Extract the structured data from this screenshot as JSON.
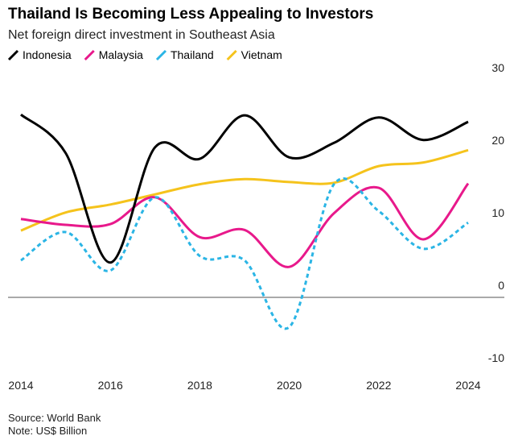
{
  "chart_data": {
    "type": "line",
    "title": "Thailand Is Becoming Less Appealing to Investors",
    "subtitle": "Net foreign direct investment in Southeast Asia",
    "source": "Source: World Bank",
    "note": "Note: US$ Billion",
    "x": [
      2014,
      2015,
      2016,
      2017,
      2018,
      2019,
      2020,
      2021,
      2022,
      2023,
      2024
    ],
    "xlim": [
      2014,
      2024
    ],
    "xticks": [
      2014,
      2016,
      2018,
      2020,
      2022,
      2024
    ],
    "ylim": [
      -10,
      30
    ],
    "yticks": [
      -10,
      0,
      10,
      20,
      30
    ],
    "grid": false,
    "legend": "top-left",
    "series": [
      {
        "name": "Indonesia",
        "color": "#000000",
        "dash": false,
        "values": [
          25.2,
          19.9,
          4.8,
          20.7,
          19.1,
          25.1,
          19.3,
          21.3,
          24.8,
          21.7,
          24.2
        ]
      },
      {
        "name": "Malaysia",
        "color": "#e8198b",
        "dash": false,
        "values": [
          10.8,
          10.0,
          10.1,
          13.8,
          8.3,
          9.3,
          4.2,
          11.6,
          15.1,
          8.0,
          15.7
        ]
      },
      {
        "name": "Thailand",
        "color": "#2bb5e5",
        "dash": true,
        "values": [
          5.1,
          9.0,
          3.7,
          13.8,
          5.7,
          5.1,
          -4.1,
          15.6,
          11.9,
          6.7,
          10.3
        ]
      },
      {
        "name": "Vietnam",
        "color": "#f5c31c",
        "dash": false,
        "values": [
          9.2,
          11.7,
          12.8,
          14.2,
          15.6,
          16.3,
          15.9,
          15.8,
          18.1,
          18.6,
          20.3
        ]
      }
    ]
  }
}
